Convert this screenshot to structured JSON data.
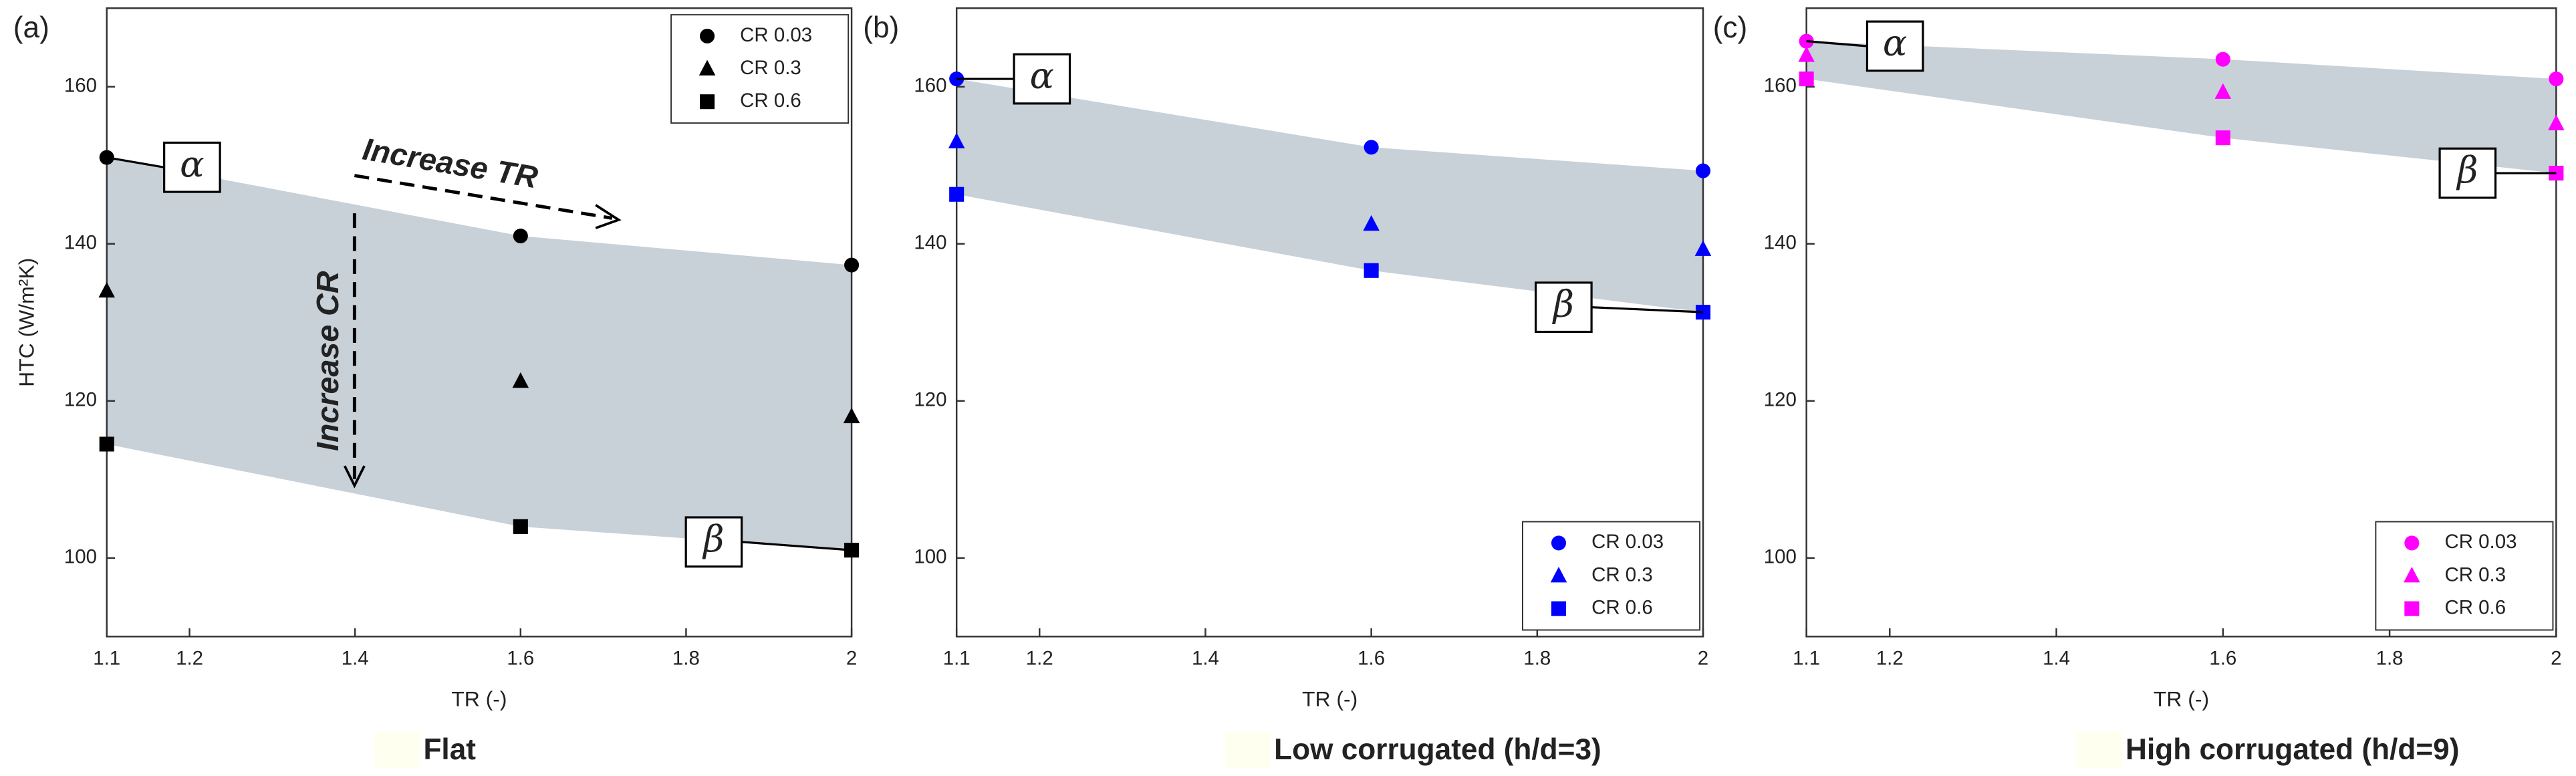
{
  "chart_data": [
    {
      "type": "scatter",
      "panel": "(a)",
      "subtitle": "Flat",
      "xlabel": "TR (-)",
      "ylabel": "HTC (W/m²K)",
      "x": [
        1.1,
        1.6,
        2
      ],
      "xlim": [
        1.1,
        2
      ],
      "xticks": [
        1.1,
        1.2,
        1.4,
        1.6,
        1.8,
        2
      ],
      "ylim": [
        90,
        170
      ],
      "yticks": [
        100,
        120,
        140,
        160
      ],
      "legend": "upper right",
      "band_color": "#c8d0d8",
      "series": [
        {
          "name": "CR 0.03",
          "marker": "circle",
          "color": "#000000",
          "values": [
            151,
            141,
            137.3
          ]
        },
        {
          "name": "CR 0.3",
          "marker": "triangle",
          "color": "#000000",
          "values": [
            134,
            122.5,
            118
          ]
        },
        {
          "name": "CR 0.6",
          "marker": "square",
          "color": "#000000",
          "values": [
            114.5,
            104,
            101
          ]
        }
      ],
      "alpha": "α",
      "beta": "β",
      "annotations": [
        "Increase TR",
        "Increase CR"
      ]
    },
    {
      "type": "scatter",
      "panel": "(b)",
      "subtitle": "Low corrugated (h/d=3)",
      "xlabel": "TR (-)",
      "x": [
        1.1,
        1.6,
        2
      ],
      "xlim": [
        1.1,
        2
      ],
      "xticks": [
        1.1,
        1.2,
        1.4,
        1.6,
        1.8,
        2
      ],
      "ylim": [
        90,
        170
      ],
      "yticks": [
        100,
        120,
        140,
        160
      ],
      "legend": "lower right",
      "band_color": "#c8d0d8",
      "series": [
        {
          "name": "CR 0.03",
          "marker": "circle",
          "color": "#0000ff",
          "values": [
            161,
            152.3,
            149.3
          ]
        },
        {
          "name": "CR 0.3",
          "marker": "triangle",
          "color": "#0000ff",
          "values": [
            153,
            142.5,
            139.3
          ]
        },
        {
          "name": "CR 0.6",
          "marker": "square",
          "color": "#0000ff",
          "values": [
            146.3,
            136.6,
            131.3
          ]
        }
      ],
      "alpha": "α",
      "beta": "β"
    },
    {
      "type": "scatter",
      "panel": "(c)",
      "subtitle": "High corrugated (h/d=9)",
      "xlabel": "TR (-)",
      "x": [
        1.1,
        1.6,
        2
      ],
      "xlim": [
        1.1,
        2
      ],
      "xticks": [
        1.1,
        1.2,
        1.4,
        1.6,
        1.8,
        2
      ],
      "ylim": [
        90,
        170
      ],
      "yticks": [
        100,
        120,
        140,
        160
      ],
      "legend": "lower right",
      "band_color": "#c8d0d8",
      "series": [
        {
          "name": "CR 0.03",
          "marker": "circle",
          "color": "#ff00ff",
          "values": [
            165.8,
            163.5,
            161
          ]
        },
        {
          "name": "CR 0.3",
          "marker": "triangle",
          "color": "#ff00ff",
          "values": [
            164,
            159.3,
            155.3
          ]
        },
        {
          "name": "CR 0.6",
          "marker": "square",
          "color": "#ff00ff",
          "values": [
            161,
            153.5,
            149
          ]
        }
      ],
      "alpha": "α",
      "beta": "β"
    }
  ]
}
